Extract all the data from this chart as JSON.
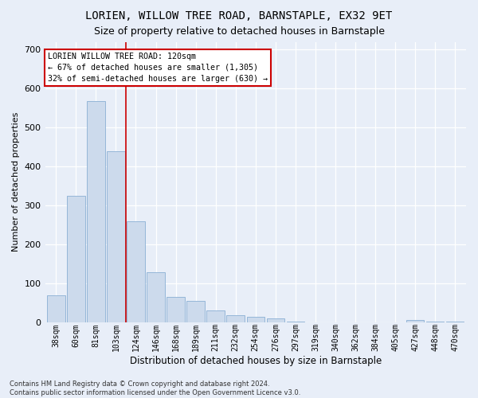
{
  "title": "LORIEN, WILLOW TREE ROAD, BARNSTAPLE, EX32 9ET",
  "subtitle": "Size of property relative to detached houses in Barnstaple",
  "xlabel": "Distribution of detached houses by size in Barnstaple",
  "ylabel": "Number of detached properties",
  "categories": [
    "38sqm",
    "60sqm",
    "81sqm",
    "103sqm",
    "124sqm",
    "146sqm",
    "168sqm",
    "189sqm",
    "211sqm",
    "232sqm",
    "254sqm",
    "276sqm",
    "297sqm",
    "319sqm",
    "340sqm",
    "362sqm",
    "384sqm",
    "405sqm",
    "427sqm",
    "448sqm",
    "470sqm"
  ],
  "values": [
    70,
    325,
    568,
    438,
    260,
    128,
    65,
    55,
    30,
    18,
    14,
    10,
    2,
    0,
    0,
    0,
    0,
    0,
    5,
    2,
    2
  ],
  "bar_color": "#ccdaec",
  "bar_edge_color": "#8aafd4",
  "vline_x": 3.5,
  "vline_color": "#cc0000",
  "annotation_title": "LORIEN WILLOW TREE ROAD: 120sqm",
  "annotation_line1": "← 67% of detached houses are smaller (1,305)",
  "annotation_line2": "32% of semi-detached houses are larger (630) →",
  "annotation_box_color": "#ffffff",
  "annotation_box_edge": "#cc0000",
  "background_color": "#e8eef8",
  "plot_bg_color": "#e8eef8",
  "footer1": "Contains HM Land Registry data © Crown copyright and database right 2024.",
  "footer2": "Contains public sector information licensed under the Open Government Licence v3.0.",
  "ylim": [
    0,
    720
  ],
  "yticks": [
    0,
    100,
    200,
    300,
    400,
    500,
    600,
    700
  ],
  "title_fontsize": 10,
  "subtitle_fontsize": 9
}
